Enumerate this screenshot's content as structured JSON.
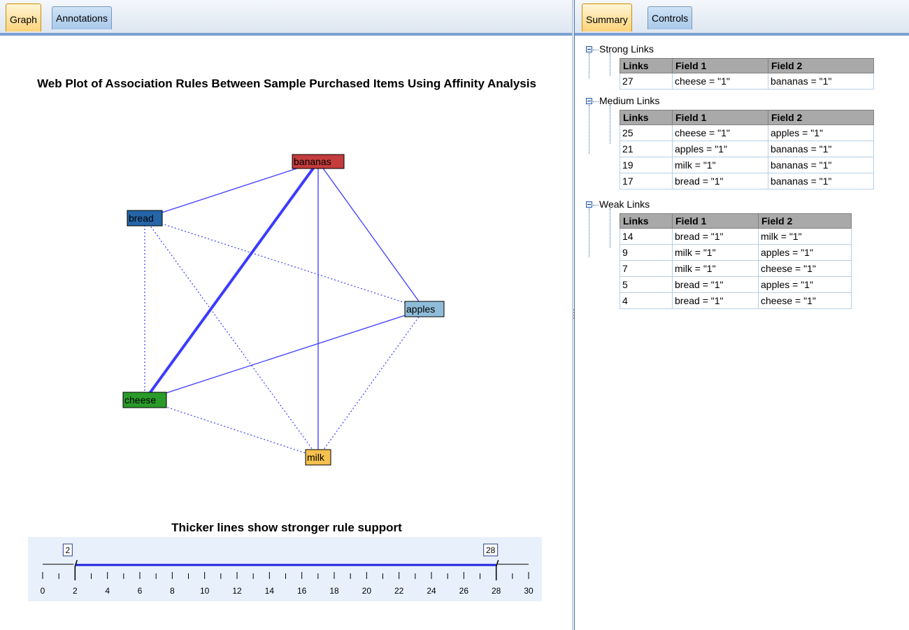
{
  "left_tabs": [
    {
      "label": "Graph",
      "active": true
    },
    {
      "label": "Annotations",
      "active": false
    }
  ],
  "right_tabs": [
    {
      "label": "Summary",
      "active": true
    },
    {
      "label": "Controls",
      "active": false
    }
  ],
  "graph": {
    "title": "Web Plot of Association Rules Between Sample Purchased Items Using Affinity Analysis",
    "nodes": [
      {
        "name": "bananas",
        "color": "#c43c3c"
      },
      {
        "name": "bread",
        "color": "#2466a8"
      },
      {
        "name": "apples",
        "color": "#8fbcd8"
      },
      {
        "name": "cheese",
        "color": "#2a9a2a"
      },
      {
        "name": "milk",
        "color": "#f6c14e"
      }
    ],
    "links": [
      {
        "from": "cheese",
        "to": "bananas",
        "count": 27,
        "strength": "strong"
      },
      {
        "from": "cheese",
        "to": "apples",
        "count": 25,
        "strength": "medium"
      },
      {
        "from": "apples",
        "to": "bananas",
        "count": 21,
        "strength": "medium"
      },
      {
        "from": "milk",
        "to": "bananas",
        "count": 19,
        "strength": "medium"
      },
      {
        "from": "bread",
        "to": "bananas",
        "count": 17,
        "strength": "medium"
      },
      {
        "from": "bread",
        "to": "milk",
        "count": 14,
        "strength": "weak"
      },
      {
        "from": "milk",
        "to": "apples",
        "count": 9,
        "strength": "weak"
      },
      {
        "from": "milk",
        "to": "cheese",
        "count": 7,
        "strength": "weak"
      },
      {
        "from": "bread",
        "to": "apples",
        "count": 5,
        "strength": "weak"
      },
      {
        "from": "bread",
        "to": "cheese",
        "count": 4,
        "strength": "weak"
      }
    ],
    "link_color": "#3b3bff"
  },
  "legend": {
    "title": "Thicker lines show stronger rule support",
    "min": 0,
    "max": 30,
    "tick_labels": [
      "0",
      "2",
      "4",
      "6",
      "8",
      "10",
      "12",
      "14",
      "16",
      "18",
      "20",
      "22",
      "24",
      "26",
      "28",
      "30"
    ],
    "slider_low": "2",
    "slider_high": "28"
  },
  "summary": {
    "groups": [
      {
        "label": "Strong Links",
        "headers": [
          "Links",
          "Field 1",
          "Field 2"
        ],
        "rows": [
          [
            "27",
            "cheese = \"1\"",
            "bananas = \"1\""
          ]
        ]
      },
      {
        "label": "Medium Links",
        "headers": [
          "Links",
          "Field 1",
          "Field 2"
        ],
        "rows": [
          [
            "25",
            "cheese = \"1\"",
            "apples = \"1\""
          ],
          [
            "21",
            "apples = \"1\"",
            "bananas = \"1\""
          ],
          [
            "19",
            "milk = \"1\"",
            "bananas = \"1\""
          ],
          [
            "17",
            "bread = \"1\"",
            "bananas = \"1\""
          ]
        ]
      },
      {
        "label": "Weak Links",
        "headers": [
          "Links",
          "Field 1",
          "Field 2"
        ],
        "rows": [
          [
            "14",
            "bread = \"1\"",
            "milk = \"1\""
          ],
          [
            "9",
            "milk = \"1\"",
            "apples = \"1\""
          ],
          [
            "7",
            "milk = \"1\"",
            "cheese = \"1\""
          ],
          [
            "5",
            "bread = \"1\"",
            "apples = \"1\""
          ],
          [
            "4",
            "bread = \"1\"",
            "cheese = \"1\""
          ]
        ]
      }
    ]
  }
}
